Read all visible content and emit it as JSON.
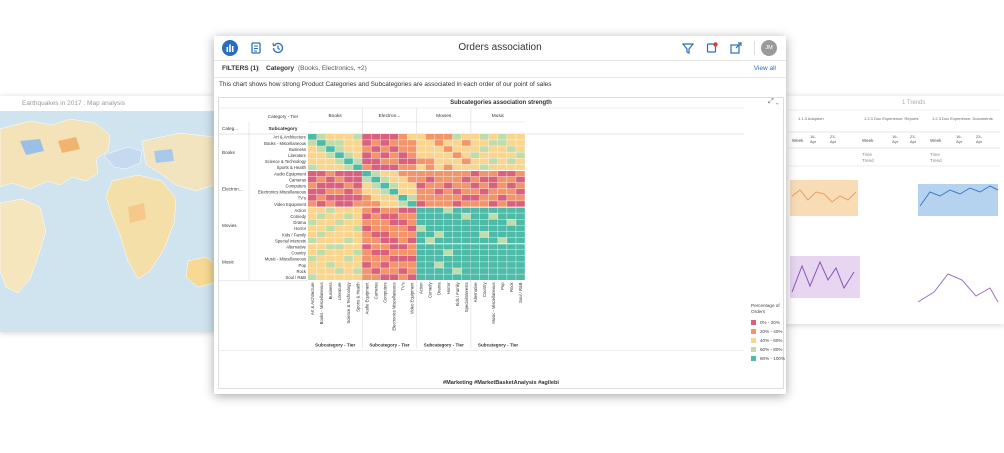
{
  "left_card": {
    "title": "Earthquakes in 2017 : Map analysis"
  },
  "right_card": {
    "title": "1 Trends",
    "headers": [
      "1.1.3 Adoption (Selected Week vs. Prior Week)",
      "1.2.3 Doc Experience: Reports (Selected Week vs. Prior Week)",
      "1.2.3 Doc Experience: Documents (Selected Week vs. Prior Week)"
    ],
    "row_week": "Week",
    "dates": [
      "16-Apr",
      "23-Apr"
    ],
    "row_time": "Time Trend"
  },
  "app": {
    "title": "Orders association",
    "user_initials": "JM"
  },
  "filters": {
    "label": "FILTERS (1)",
    "separator": "|",
    "category_label": "Category",
    "category_value": "(Books, Electronics, +2)",
    "view_all": "View all"
  },
  "description": "This chart shows how strong Product Categories and Subcategories are associated in each order of our point of sales",
  "chart": {
    "title": "Subcategories association strength",
    "hashtags": "#Marketing #MarketBasketAnalysis #agilebi",
    "legend_title": "Percentage of Orders",
    "legend": [
      {
        "label": "0% - 20%",
        "color": "#d9617e"
      },
      {
        "label": "20% - 40%",
        "color": "#f2956a"
      },
      {
        "label": "40% - 60%",
        "color": "#f9d58e"
      },
      {
        "label": "60% - 80%",
        "color": "#bfdcaa"
      },
      {
        "label": "80% - 100%",
        "color": "#4dbba7"
      }
    ]
  },
  "chart_data": {
    "type": "heatmap",
    "title": "Subcategories association strength",
    "row_header_1": "Category - Tier",
    "row_header_2": "Subcategory",
    "row_header_short": "Categ...",
    "col_axis_label": "Subcategory - Tier",
    "categories": [
      {
        "name": "Books",
        "short": "Books",
        "subs": [
          "Art & Architecture",
          "Books - Miscellaneous",
          "Business",
          "Literature",
          "Science & Technology",
          "Sports & Health"
        ]
      },
      {
        "name": "Electronics",
        "short": "Electron...",
        "subs": [
          "Audio Equipment",
          "Cameras",
          "Computers",
          "Electronics - Miscellaneous",
          "TV's",
          "Video Equipment"
        ]
      },
      {
        "name": "Movies",
        "short": "Movies",
        "subs": [
          "Action",
          "Comedy",
          "Drama",
          "Horror",
          "Kids / Family",
          "Special Interests"
        ]
      },
      {
        "name": "Music",
        "short": "Music",
        "subs": [
          "Alternative",
          "Country",
          "Music - Miscellaneous",
          "Pop",
          "Rock",
          "Soul / R&B"
        ]
      }
    ],
    "col_category_labels": [
      "Books",
      "Electron...",
      "Movies",
      "Music"
    ],
    "row_labels": [
      "Art & Architecture",
      "Books - Miscellaneous",
      "Business",
      "Literature",
      "Science & Technology",
      "Sports & Health",
      "Audio Equipment",
      "Cameras",
      "Computers",
      "Electronics Miscellaneous",
      "TV's",
      "Video Equipment",
      "Action",
      "Comedy",
      "Drama",
      "Horror",
      "Kids / Family",
      "Special Interests",
      "Alternative",
      "Country",
      "Music - Miscellaneous",
      "Pop",
      "Rock",
      "Soul / R&B"
    ],
    "col_labels": [
      "Art & Architecture",
      "Books - Miscellaneous",
      "Business",
      "Literature",
      "Science & Technology",
      "Sports & Health",
      "Audio Equipment",
      "Cameras",
      "Computers",
      "Electronics Miscellaneous",
      "TV's",
      "Video Equipment",
      "Action",
      "Comedy",
      "Drama",
      "Horror",
      "Kids / Family",
      "SpecialInterests",
      "Alternative",
      "Country",
      "Music - Miscellaneous",
      "Pop",
      "Rock",
      "Soul / R&B"
    ],
    "bins": [
      "0% - 20%",
      "20% - 40%",
      "40% - 60%",
      "60% - 80%",
      "80% - 100%"
    ],
    "values": [
      [
        4,
        3,
        2,
        2,
        2,
        3,
        0,
        0,
        0,
        0,
        1,
        2,
        2,
        1,
        1,
        1,
        3,
        2,
        2,
        3,
        2,
        3,
        2,
        2
      ],
      [
        3,
        4,
        3,
        3,
        2,
        2,
        0,
        1,
        0,
        1,
        1,
        1,
        2,
        2,
        1,
        2,
        2,
        1,
        2,
        2,
        3,
        3,
        2,
        2
      ],
      [
        2,
        3,
        4,
        3,
        2,
        2,
        1,
        0,
        1,
        0,
        1,
        1,
        2,
        2,
        2,
        1,
        2,
        2,
        2,
        3,
        2,
        2,
        3,
        2
      ],
      [
        2,
        2,
        3,
        4,
        3,
        2,
        0,
        1,
        0,
        1,
        0,
        1,
        2,
        2,
        2,
        2,
        1,
        2,
        3,
        2,
        2,
        2,
        2,
        3
      ],
      [
        2,
        2,
        2,
        3,
        4,
        3,
        0,
        0,
        1,
        1,
        0,
        0,
        1,
        1,
        2,
        2,
        2,
        1,
        2,
        2,
        3,
        2,
        3,
        2
      ],
      [
        3,
        2,
        2,
        2,
        3,
        4,
        1,
        0,
        0,
        0,
        1,
        1,
        2,
        1,
        2,
        1,
        2,
        2,
        2,
        3,
        2,
        2,
        2,
        2
      ],
      [
        0,
        0,
        1,
        0,
        0,
        0,
        4,
        3,
        2,
        2,
        1,
        1,
        1,
        1,
        1,
        1,
        1,
        1,
        0,
        1,
        1,
        0,
        0,
        1
      ],
      [
        0,
        1,
        0,
        1,
        0,
        0,
        3,
        4,
        3,
        2,
        2,
        1,
        1,
        0,
        1,
        1,
        1,
        0,
        1,
        0,
        0,
        1,
        1,
        0
      ],
      [
        1,
        0,
        0,
        0,
        1,
        0,
        2,
        3,
        4,
        3,
        2,
        2,
        0,
        1,
        1,
        0,
        1,
        1,
        0,
        1,
        0,
        1,
        0,
        1
      ],
      [
        0,
        0,
        1,
        1,
        0,
        1,
        2,
        2,
        3,
        4,
        2,
        2,
        1,
        1,
        0,
        1,
        0,
        1,
        1,
        0,
        1,
        1,
        1,
        0
      ],
      [
        0,
        1,
        0,
        0,
        0,
        0,
        1,
        2,
        2,
        2,
        4,
        3,
        1,
        1,
        1,
        1,
        1,
        0,
        0,
        1,
        1,
        0,
        1,
        1
      ],
      [
        1,
        0,
        1,
        0,
        0,
        1,
        1,
        1,
        2,
        2,
        3,
        4,
        0,
        1,
        1,
        1,
        0,
        1,
        1,
        1,
        0,
        1,
        0,
        0
      ],
      [
        2,
        2,
        3,
        2,
        2,
        2,
        1,
        0,
        1,
        1,
        0,
        0,
        4,
        4,
        4,
        3,
        4,
        4,
        4,
        4,
        4,
        4,
        4,
        4
      ],
      [
        2,
        3,
        2,
        2,
        3,
        2,
        0,
        1,
        0,
        0,
        1,
        1,
        4,
        4,
        4,
        4,
        4,
        3,
        4,
        4,
        3,
        4,
        4,
        4
      ],
      [
        3,
        2,
        2,
        3,
        2,
        2,
        1,
        1,
        1,
        0,
        0,
        1,
        4,
        4,
        4,
        4,
        4,
        4,
        4,
        4,
        4,
        4,
        3,
        4
      ],
      [
        2,
        2,
        3,
        2,
        2,
        3,
        0,
        1,
        1,
        1,
        1,
        0,
        3,
        4,
        4,
        4,
        4,
        4,
        4,
        4,
        4,
        4,
        4,
        4
      ],
      [
        2,
        3,
        2,
        2,
        2,
        2,
        1,
        0,
        0,
        1,
        1,
        1,
        4,
        4,
        3,
        4,
        4,
        4,
        4,
        3,
        4,
        4,
        4,
        4
      ],
      [
        3,
        2,
        2,
        2,
        3,
        2,
        1,
        1,
        0,
        0,
        1,
        0,
        4,
        3,
        4,
        4,
        4,
        4,
        4,
        4,
        4,
        3,
        4,
        4
      ],
      [
        2,
        2,
        3,
        3,
        2,
        2,
        0,
        1,
        1,
        0,
        0,
        1,
        4,
        4,
        4,
        4,
        4,
        4,
        4,
        4,
        4,
        4,
        4,
        4
      ],
      [
        2,
        3,
        2,
        2,
        2,
        3,
        1,
        0,
        0,
        1,
        1,
        1,
        4,
        4,
        4,
        3,
        4,
        4,
        4,
        4,
        4,
        4,
        4,
        4
      ],
      [
        3,
        2,
        2,
        2,
        3,
        2,
        1,
        1,
        1,
        0,
        0,
        0,
        4,
        4,
        4,
        4,
        4,
        4,
        4,
        4,
        4,
        4,
        4,
        4
      ],
      [
        2,
        2,
        3,
        2,
        2,
        2,
        0,
        1,
        0,
        1,
        1,
        1,
        4,
        4,
        3,
        4,
        4,
        4,
        4,
        4,
        4,
        4,
        4,
        4
      ],
      [
        2,
        2,
        2,
        3,
        2,
        3,
        1,
        0,
        1,
        1,
        0,
        1,
        4,
        4,
        4,
        4,
        3,
        4,
        4,
        4,
        4,
        4,
        4,
        4
      ],
      [
        3,
        2,
        2,
        2,
        2,
        2,
        1,
        1,
        0,
        0,
        1,
        0,
        4,
        4,
        4,
        4,
        4,
        4,
        4,
        4,
        4,
        4,
        4,
        4
      ]
    ],
    "legend_title": "Percentage of Orders"
  }
}
